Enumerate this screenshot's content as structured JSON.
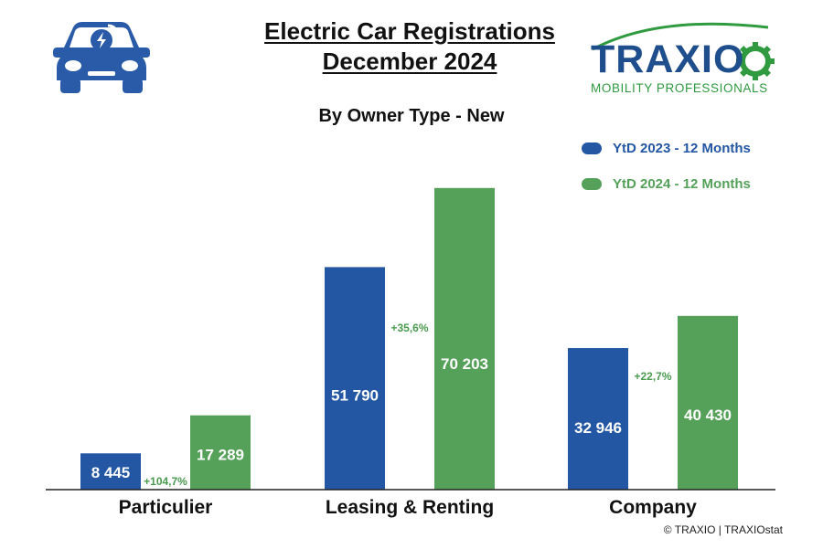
{
  "title": {
    "line1": "Electric Car Registrations",
    "line2": "December 2024"
  },
  "subtitle": "By Owner Type - New",
  "logo": {
    "name": "TRAXIO",
    "tagline": "MOBILITY PROFESSIONALS"
  },
  "icons": {
    "car": "electric-car-icon"
  },
  "colors": {
    "series_2023": "#2357a4",
    "series_2024": "#55a15a"
  },
  "copyright": "© TRAXIO | TRAXIOstat",
  "chart_data": {
    "type": "bar",
    "categories": [
      "Particulier",
      "Leasing & Renting",
      "Company"
    ],
    "series": [
      {
        "name": "YtD 2023 - 12 Months",
        "values": [
          8445,
          51790,
          32946
        ],
        "labels": [
          "8 445",
          "51 790",
          "32 946"
        ],
        "color": "#2357a4"
      },
      {
        "name": "YtD 2024 - 12 Months",
        "values": [
          17289,
          70203,
          40430
        ],
        "labels": [
          "17 289",
          "70 203",
          "40 430"
        ],
        "color": "#55a15a"
      }
    ],
    "changes": [
      "+104,7%",
      "+35,6%",
      "+22,7%"
    ],
    "ylim": [
      0,
      81000
    ],
    "grid": false,
    "legend": "top-right"
  }
}
